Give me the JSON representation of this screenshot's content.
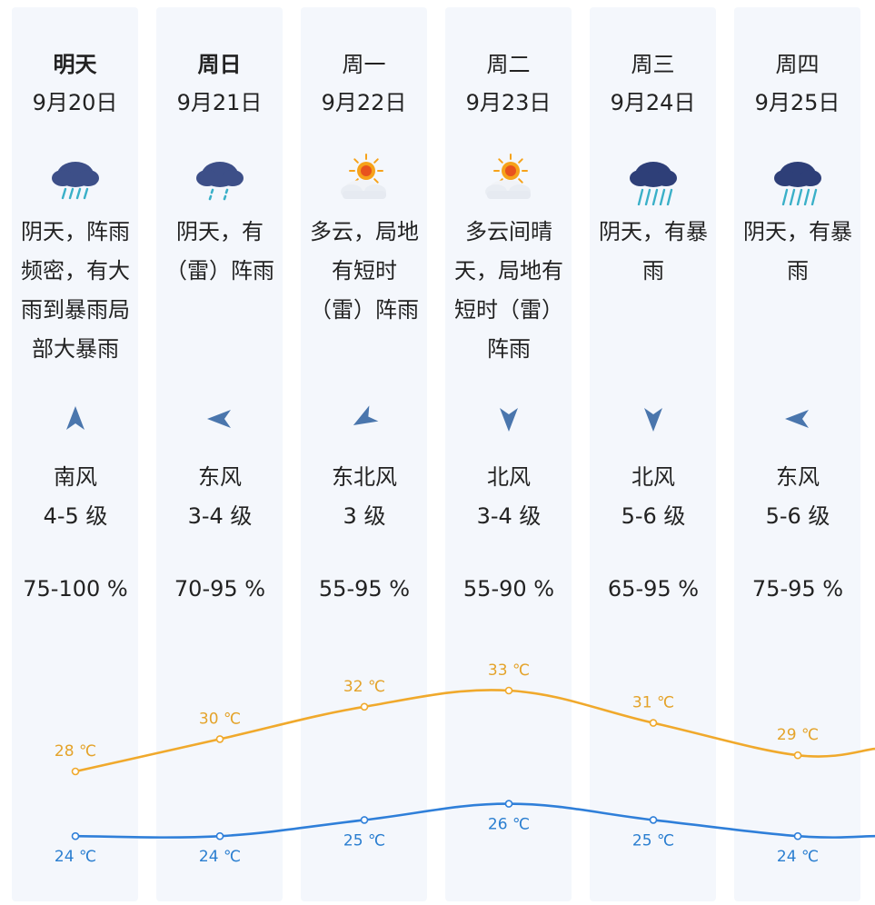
{
  "colors": {
    "high_line": "#f0a92c",
    "low_line": "#2f7fd9",
    "high_label": "#e4a32a",
    "low_label": "#2a7ed0",
    "column_bg": "#f4f7fc",
    "icon_cloud_dark": "#2e3f78",
    "icon_rain": "#3ab0c8",
    "icon_sun": "#f6a21a"
  },
  "days": [
    {
      "day_label": "明天",
      "bold": true,
      "date": "9月20日",
      "icon": "heavy-rain-shower-icon",
      "desc_lines": [
        "阴天，阵雨",
        "频密，有大",
        "雨到暴雨局",
        "部大暴雨"
      ],
      "wind_dir": "南风",
      "wind_arrow": "arrow-up-icon",
      "wind_level": "4-5 级",
      "humidity": "75-100 %"
    },
    {
      "day_label": "周日",
      "bold": true,
      "date": "9月21日",
      "icon": "shower-icon",
      "desc_lines": [
        "阴天，有",
        "（雷）阵雨"
      ],
      "wind_dir": "东风",
      "wind_arrow": "arrow-left-icon",
      "wind_level": "3-4 级",
      "humidity": "70-95 %"
    },
    {
      "day_label": "周一",
      "bold": false,
      "date": "9月22日",
      "icon": "partly-cloudy-icon",
      "desc_lines": [
        "多云，局地",
        "有短时",
        "（雷）阵雨"
      ],
      "wind_dir": "东北风",
      "wind_arrow": "arrow-down-left-icon",
      "wind_level": "3 级",
      "humidity": "55-95 %"
    },
    {
      "day_label": "周二",
      "bold": false,
      "date": "9月23日",
      "icon": "partly-cloudy-icon",
      "desc_lines": [
        "多云间晴",
        "天，局地有",
        "短时（雷）",
        "阵雨"
      ],
      "wind_dir": "北风",
      "wind_arrow": "arrow-down-icon",
      "wind_level": "3-4 级",
      "humidity": "55-90 %"
    },
    {
      "day_label": "周三",
      "bold": false,
      "date": "9月24日",
      "icon": "rainstorm-icon",
      "desc_lines": [
        "阴天，有暴",
        "雨"
      ],
      "wind_dir": "北风",
      "wind_arrow": "arrow-down-icon",
      "wind_level": "5-6 级",
      "humidity": "65-95 %"
    },
    {
      "day_label": "周四",
      "bold": false,
      "date": "9月25日",
      "icon": "rainstorm-icon",
      "desc_lines": [
        "阴天，有暴",
        "雨"
      ],
      "wind_dir": "东风",
      "wind_arrow": "arrow-left-icon",
      "wind_level": "5-6 级",
      "humidity": "75-95 %"
    }
  ],
  "chart_data": {
    "type": "line",
    "x": [
      "9月20日",
      "9月21日",
      "9月22日",
      "9月23日",
      "9月24日",
      "9月25日"
    ],
    "unit": "℃",
    "series": [
      {
        "key": "high",
        "values": [
          28,
          30,
          32,
          33,
          31,
          29
        ]
      },
      {
        "key": "low",
        "values": [
          24,
          24,
          25,
          26,
          25,
          24
        ]
      }
    ],
    "high_labels": [
      "28 ℃",
      "30 ℃",
      "32 ℃",
      "33 ℃",
      "31 ℃",
      "29 ℃"
    ],
    "low_labels": [
      "24 ℃",
      "24 ℃",
      "25 ℃",
      "26 ℃",
      "25 ℃",
      "24 ℃"
    ]
  }
}
